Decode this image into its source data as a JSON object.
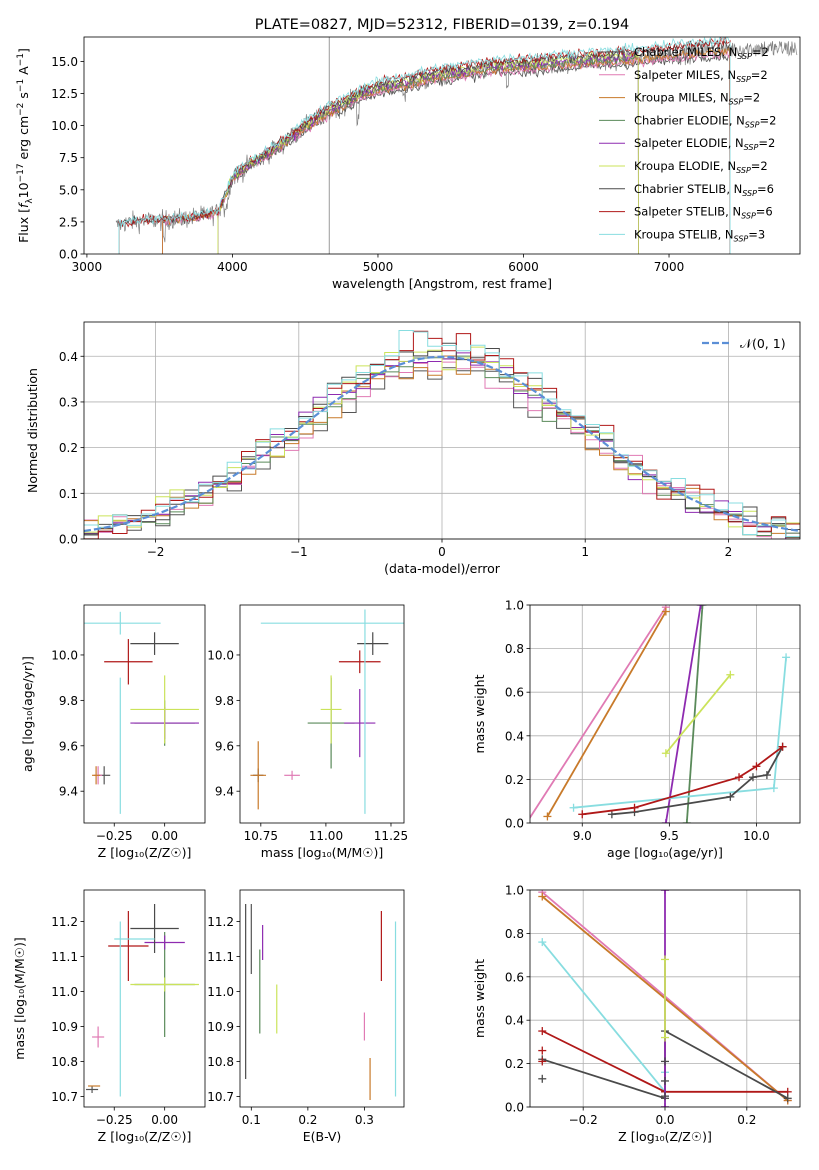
{
  "colors": {
    "Chabrier MILES": "#555555",
    "Salpeter MILES": "#e07ab4",
    "Kroupa MILES": "#c87a2a",
    "Chabrier ELODIE": "#5a8a5a",
    "Salpeter ELODIE": "#8e2bb0",
    "Kroupa ELODIE": "#cbe35a",
    "Chabrier STELIB": "#4a4a4a",
    "Salpeter STELIB": "#b01818",
    "Kroupa STELIB": "#88dde0",
    "data": "#808080",
    "normal": "#5b8fd6"
  },
  "chart_data": [
    {
      "id": "spectrum",
      "type": "line",
      "title": "PLATE=0827, MJD=52312, FIBERID=0139, z=0.194",
      "xlabel": "wavelength [Angstrom, rest frame]",
      "ylabel": "Flux [f_λ10^-17 erg cm^-2 s^-1 A^-1]",
      "xlim": [
        2980,
        7900
      ],
      "ylim": [
        0,
        16.9
      ],
      "xticks": [
        3000,
        4000,
        5000,
        6000,
        7000
      ],
      "yticks": [
        0.0,
        2.5,
        5.0,
        7.5,
        10.0,
        12.5,
        15.0
      ],
      "legend": {
        "position": "right",
        "entries": [
          {
            "label": "Chabrier MILES, N",
            "sub": "SSP",
            "suffix": "=2",
            "model": "Chabrier MILES"
          },
          {
            "label": "Salpeter MILES, N",
            "sub": "SSP",
            "suffix": "=2",
            "model": "Salpeter MILES"
          },
          {
            "label": "Kroupa MILES, N",
            "sub": "SSP",
            "suffix": "=2",
            "model": "Kroupa MILES"
          },
          {
            "label": "Chabrier ELODIE, N",
            "sub": "SSP",
            "suffix": "=2",
            "model": "Chabrier ELODIE"
          },
          {
            "label": "Salpeter ELODIE, N",
            "sub": "SSP",
            "suffix": "=2",
            "model": "Salpeter ELODIE"
          },
          {
            "label": "Kroupa ELODIE, N",
            "sub": "SSP",
            "suffix": "=2",
            "model": "Kroupa ELODIE"
          },
          {
            "label": "Chabrier STELIB, N",
            "sub": "SSP",
            "suffix": "=6",
            "model": "Chabrier STELIB"
          },
          {
            "label": "Salpeter STELIB, N",
            "sub": "SSP",
            "suffix": "=6",
            "model": "Salpeter STELIB"
          },
          {
            "label": "Kroupa STELIB, N",
            "sub": "SSP",
            "suffix": "=3",
            "model": "Kroupa STELIB"
          }
        ]
      },
      "continuum": {
        "x": [
          3200,
          3300,
          3400,
          3500,
          3600,
          3700,
          3800,
          3900,
          3950,
          4000,
          4100,
          4200,
          4300,
          4400,
          4500,
          4600,
          4700,
          4800,
          4900,
          5000,
          5200,
          5400,
          5600,
          5800,
          6000,
          6200,
          6400,
          6600,
          6800,
          7000,
          7200,
          7400,
          7500
        ],
        "y": [
          2.2,
          2.5,
          2.6,
          2.6,
          2.7,
          2.8,
          3.0,
          3.2,
          4.5,
          5.9,
          6.8,
          7.5,
          8.2,
          9.0,
          9.9,
          10.6,
          11.3,
          11.8,
          12.4,
          12.8,
          13.3,
          13.8,
          14.1,
          14.5,
          14.6,
          14.8,
          15.0,
          15.1,
          15.3,
          15.5,
          15.8,
          15.9,
          16.0
        ]
      },
      "model_ranges": {
        "Chabrier MILES": [
          3520,
          7420
        ],
        "Salpeter MILES": [
          3520,
          7420
        ],
        "Kroupa MILES": [
          3520,
          7420
        ],
        "Chabrier ELODIE": [
          3900,
          6790
        ],
        "Salpeter ELODIE": [
          3900,
          6790
        ],
        "Kroupa ELODIE": [
          3900,
          6790
        ],
        "Chabrier STELIB": [
          3220,
          7420
        ],
        "Salpeter STELIB": [
          3220,
          7420
        ],
        "Kroupa STELIB": [
          3220,
          7420
        ]
      }
    },
    {
      "id": "residuals",
      "type": "line",
      "xlabel": "(data-model)/error",
      "ylabel": "Normed distribution",
      "xlim": [
        -2.5,
        2.5
      ],
      "ylim": [
        0,
        0.475
      ],
      "xticks": [
        -2,
        -1,
        0,
        1,
        2
      ],
      "yticks": [
        0.0,
        0.1,
        0.2,
        0.3,
        0.4
      ],
      "bin_width": 0.1,
      "legend": {
        "position": "top-right",
        "label": "𝒩(0, 1)"
      },
      "normal": {
        "mean": 0,
        "sigma": 1
      }
    },
    {
      "id": "age-vs-Z",
      "type": "scatter",
      "xlabel": "Z [log₁₀(Z/Z☉)]",
      "ylabel": "age  [log₁₀(age/yr)]",
      "xlim": [
        -0.4,
        0.2
      ],
      "ylim": [
        9.26,
        10.22
      ],
      "xticks": [
        -0.25,
        0.0
      ],
      "yticks": [
        9.4,
        9.6,
        9.8,
        10.0
      ],
      "points": [
        {
          "model": "Chabrier MILES",
          "x": -0.3,
          "y": 9.47,
          "xerr": 0.03,
          "yerr": 0.04
        },
        {
          "model": "Salpeter MILES",
          "x": -0.33,
          "y": 9.47,
          "xerr": 0.02,
          "yerr": 0.04
        },
        {
          "model": "Kroupa MILES",
          "x": -0.34,
          "y": 9.47,
          "xerr": 0.02,
          "yerr": 0.04
        },
        {
          "model": "Chabrier ELODIE",
          "x": 0.0,
          "y": 9.7,
          "xerr": 0.15,
          "yerr": 0.1
        },
        {
          "model": "Salpeter ELODIE",
          "x": 0.0,
          "y": 9.7,
          "xerr": 0.17,
          "yerr": 0.07
        },
        {
          "model": "Kroupa ELODIE",
          "x": 0.0,
          "y": 9.76,
          "xerr": 0.17,
          "yerr": 0.15
        },
        {
          "model": "Chabrier STELIB",
          "x": -0.05,
          "y": 10.05,
          "xerr": 0.12,
          "yerr": 0.05
        },
        {
          "model": "Salpeter STELIB",
          "x": -0.18,
          "y": 9.97,
          "xerr": 0.12,
          "yerr": 0.1
        },
        {
          "model": "Kroupa STELIB",
          "x": -0.22,
          "y": 10.14,
          "xerr": 0.2,
          "yerr": 0.05
        },
        {
          "model": "Kroupa STELIB",
          "x": -0.22,
          "y": 9.6,
          "xerr": 0.0,
          "yerr": 0.3
        }
      ]
    },
    {
      "id": "age-vs-mass",
      "type": "scatter",
      "xlabel": "mass [log₁₀(M/M☉)]",
      "ylabel": "",
      "xlim": [
        10.67,
        11.3
      ],
      "ylim": [
        9.26,
        10.22
      ],
      "xticks": [
        10.75,
        11.0,
        11.25
      ],
      "yticks": [
        9.4,
        9.6,
        9.8,
        10.0
      ],
      "points": [
        {
          "model": "Chabrier MILES",
          "x": 10.74,
          "y": 9.47,
          "xerr": 0.02,
          "yerr": 0.03
        },
        {
          "model": "Salpeter MILES",
          "x": 10.87,
          "y": 9.47,
          "xerr": 0.03,
          "yerr": 0.02
        },
        {
          "model": "Kroupa MILES",
          "x": 10.74,
          "y": 9.47,
          "xerr": 0.03,
          "yerr": 0.15
        },
        {
          "model": "Chabrier ELODIE",
          "x": 11.02,
          "y": 9.7,
          "xerr": 0.09,
          "yerr": 0.2
        },
        {
          "model": "Salpeter ELODIE",
          "x": 11.13,
          "y": 9.7,
          "xerr": 0.06,
          "yerr": 0.15
        },
        {
          "model": "Kroupa ELODIE",
          "x": 11.02,
          "y": 9.76,
          "xerr": 0.04,
          "yerr": 0.15
        },
        {
          "model": "Chabrier STELIB",
          "x": 11.18,
          "y": 10.05,
          "xerr": 0.06,
          "yerr": 0.05
        },
        {
          "model": "Salpeter STELIB",
          "x": 11.13,
          "y": 9.97,
          "xerr": 0.08,
          "yerr": 0.05
        },
        {
          "model": "Kroupa STELIB",
          "x": 11.15,
          "y": 10.14,
          "xerr": 0.4,
          "yerr": 0.0
        },
        {
          "model": "Kroupa STELIB",
          "x": 11.15,
          "y": 9.75,
          "xerr": 0.0,
          "yerr": 0.45
        }
      ]
    },
    {
      "id": "weight-vs-age",
      "type": "line",
      "xlabel": "age  [log₁₀(age/yr)]",
      "ylabel": "mass weight",
      "xlim": [
        8.7,
        10.25
      ],
      "ylim": [
        0,
        1
      ],
      "xticks": [
        9.0,
        9.5,
        10.0
      ],
      "yticks": [
        0.0,
        0.2,
        0.4,
        0.6,
        0.8,
        1.0
      ],
      "series": [
        {
          "model": "Salpeter MILES",
          "x": [
            8.68,
            9.48
          ],
          "y": [
            0.0,
            0.99
          ]
        },
        {
          "model": "Kroupa MILES",
          "x": [
            8.8,
            9.48
          ],
          "y": [
            0.03,
            0.97
          ]
        },
        {
          "model": "Chabrier ELODIE",
          "x": [
            9.6,
            9.69
          ],
          "y": [
            0.0,
            1.0
          ]
        },
        {
          "model": "Salpeter ELODIE",
          "x": [
            9.48,
            9.68
          ],
          "y": [
            0.0,
            1.0
          ]
        },
        {
          "model": "Kroupa ELODIE",
          "x": [
            9.48,
            9.85
          ],
          "y": [
            0.32,
            0.68
          ]
        },
        {
          "model": "Kroupa STELIB",
          "x": [
            8.95,
            10.1,
            10.17
          ],
          "y": [
            0.07,
            0.16,
            0.76
          ]
        },
        {
          "model": "Chabrier STELIB",
          "x": [
            9.17,
            9.3,
            9.85,
            9.98,
            10.06,
            10.15
          ],
          "y": [
            0.04,
            0.05,
            0.12,
            0.21,
            0.22,
            0.35
          ]
        },
        {
          "model": "Salpeter STELIB",
          "x": [
            9.0,
            9.3,
            9.9,
            10.0,
            10.15
          ],
          "y": [
            0.04,
            0.07,
            0.21,
            0.26,
            0.35
          ]
        }
      ]
    },
    {
      "id": "mass-vs-Z",
      "type": "scatter",
      "xlabel": "Z [log₁₀(Z/Z☉)]",
      "ylabel": "mass [log₁₀(M/M☉)]",
      "xlim": [
        -0.4,
        0.2
      ],
      "ylim": [
        10.67,
        11.29
      ],
      "xticks": [
        -0.25,
        0.0
      ],
      "yticks": [
        10.7,
        10.8,
        10.9,
        11.0,
        11.1,
        11.2
      ],
      "points": [
        {
          "model": "Chabrier MILES",
          "x": -0.36,
          "y": 10.72,
          "xerr": 0.03,
          "yerr": 0.01
        },
        {
          "model": "Salpeter MILES",
          "x": -0.33,
          "y": 10.87,
          "xerr": 0.03,
          "yerr": 0.03
        },
        {
          "model": "Kroupa MILES",
          "x": -0.35,
          "y": 10.73,
          "xerr": 0.03,
          "yerr": 0.0
        },
        {
          "model": "Chabrier ELODIE",
          "x": 0.0,
          "y": 11.02,
          "xerr": 0.15,
          "yerr": 0.15
        },
        {
          "model": "Salpeter ELODIE",
          "x": 0.0,
          "y": 11.14,
          "xerr": 0.1,
          "yerr": 0.02
        },
        {
          "model": "Kroupa ELODIE",
          "x": 0.0,
          "y": 11.02,
          "xerr": 0.17,
          "yerr": 0.02
        },
        {
          "model": "Chabrier STELIB",
          "x": -0.05,
          "y": 11.18,
          "xerr": 0.12,
          "yerr": 0.07
        },
        {
          "model": "Salpeter STELIB",
          "x": -0.18,
          "y": 11.13,
          "xerr": 0.1,
          "yerr": 0.1
        },
        {
          "model": "Kroupa STELIB",
          "x": -0.22,
          "y": 10.95,
          "xerr": 0.0,
          "yerr": 0.25
        },
        {
          "model": "Kroupa STELIB",
          "x": -0.15,
          "y": 11.15,
          "xerr": 0.1,
          "yerr": 0.0
        }
      ]
    },
    {
      "id": "mass-vs-EBV",
      "type": "scatter",
      "xlabel": "E(B-V)",
      "ylabel": "",
      "xlim": [
        0.08,
        0.37
      ],
      "ylim": [
        10.67,
        11.29
      ],
      "xticks": [
        0.1,
        0.2,
        0.3
      ],
      "yticks": [
        10.7,
        10.8,
        10.9,
        11.0,
        11.1,
        11.2
      ],
      "points": [
        {
          "model": "Chabrier MILES",
          "x": 0.1,
          "y": 11.15,
          "xerr": 0.0,
          "yerr": 0.1
        },
        {
          "model": "Salpeter MILES",
          "x": 0.3,
          "y": 10.9,
          "xerr": 0.0,
          "yerr": 0.04
        },
        {
          "model": "Kroupa MILES",
          "x": 0.31,
          "y": 10.75,
          "xerr": 0.0,
          "yerr": 0.06
        },
        {
          "model": "Chabrier ELODIE",
          "x": 0.115,
          "y": 11.0,
          "xerr": 0.0,
          "yerr": 0.12
        },
        {
          "model": "Salpeter ELODIE",
          "x": 0.12,
          "y": 11.14,
          "xerr": 0.0,
          "yerr": 0.05
        },
        {
          "model": "Kroupa ELODIE",
          "x": 0.145,
          "y": 10.95,
          "xerr": 0.0,
          "yerr": 0.07
        },
        {
          "model": "Chabrier STELIB",
          "x": 0.09,
          "y": 11.0,
          "xerr": 0.0,
          "yerr": 0.25
        },
        {
          "model": "Salpeter STELIB",
          "x": 0.33,
          "y": 11.13,
          "xerr": 0.0,
          "yerr": 0.1
        },
        {
          "model": "Kroupa STELIB",
          "x": 0.355,
          "y": 10.95,
          "xerr": 0.0,
          "yerr": 0.25
        }
      ]
    },
    {
      "id": "weight-vs-Z",
      "type": "line",
      "xlabel": "Z [log₁₀(Z/Z☉)]",
      "ylabel": "mass weight",
      "xlim": [
        -0.33,
        0.33
      ],
      "ylim": [
        0,
        1
      ],
      "xticks": [
        -0.2,
        0.0,
        0.2
      ],
      "yticks": [
        0.0,
        0.2,
        0.4,
        0.6,
        0.8,
        1.0
      ],
      "series": [
        {
          "model": "Salpeter MILES",
          "x": [
            -0.3,
            0.3
          ],
          "y": [
            0.99,
            0.03
          ]
        },
        {
          "model": "Kroupa MILES",
          "x": [
            -0.3,
            0.3
          ],
          "y": [
            0.97,
            0.03
          ]
        },
        {
          "model": "Kroupa STELIB",
          "x": [
            -0.3,
            0.0,
            0.0
          ],
          "y": [
            0.76,
            0.07,
            0.16
          ]
        },
        {
          "model": "Salpeter STELIB",
          "x": [
            -0.3,
            0.0,
            0.3
          ],
          "y": [
            0.35,
            0.07,
            0.07
          ]
        },
        {
          "model": "Chabrier STELIB",
          "x": [
            -0.3,
            0.0,
            0.0,
            0.3
          ],
          "y": [
            0.22,
            0.04,
            0.35,
            0.04
          ]
        },
        {
          "model": "Salpeter ELODIE",
          "x": [
            0.0,
            0.0
          ],
          "y": [
            0.0,
            1.0
          ]
        },
        {
          "model": "Kroupa ELODIE",
          "x": [
            0.0,
            0.0
          ],
          "y": [
            0.32,
            0.68
          ]
        }
      ],
      "markers": [
        {
          "model": "Salpeter STELIB",
          "x": -0.3,
          "y": [
            0.26,
            0.21
          ]
        },
        {
          "model": "Chabrier STELIB",
          "x": -0.3,
          "y": [
            0.13
          ]
        },
        {
          "model": "Chabrier STELIB",
          "x": 0.0,
          "y": [
            0.21,
            0.12,
            0.05
          ]
        },
        {
          "model": "Salpeter ELODIE",
          "x": 0.0,
          "y": [
            1.0,
            0.0
          ]
        }
      ]
    }
  ]
}
